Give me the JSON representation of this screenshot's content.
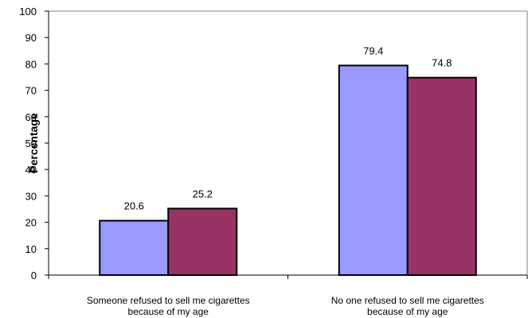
{
  "chart_data": {
    "type": "bar",
    "title": "",
    "xlabel": "",
    "ylabel": "Percentage",
    "ylim": [
      0,
      100
    ],
    "yticks": [
      0,
      10,
      20,
      30,
      40,
      50,
      60,
      70,
      80,
      90,
      100
    ],
    "categories": [
      [
        "Someone refused to sell me cigarettes",
        "because of my age"
      ],
      [
        "No one refused to sell me cigarettes",
        "because of my age"
      ]
    ],
    "series": [
      {
        "color": "#9999ff",
        "values": [
          20.6,
          79.4
        ]
      },
      {
        "color": "#993366",
        "values": [
          25.2,
          74.8
        ]
      }
    ],
    "data_labels": true,
    "grid": false,
    "legend": "none"
  }
}
